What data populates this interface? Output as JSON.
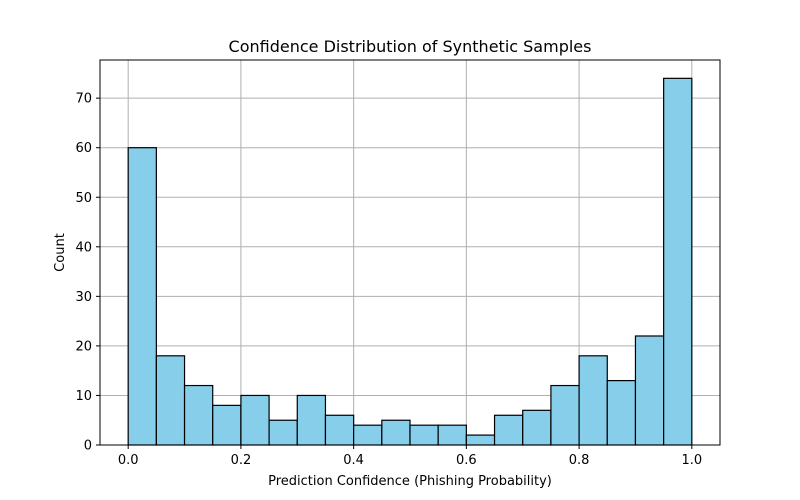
{
  "chart_data": {
    "type": "bar",
    "title": "Confidence Distribution of Synthetic Samples",
    "xlabel": "Prediction Confidence (Phishing Probability)",
    "ylabel": "Count",
    "bin_edges": [
      0.0,
      0.05,
      0.1,
      0.15,
      0.2,
      0.25,
      0.3,
      0.35,
      0.4,
      0.45,
      0.5,
      0.55,
      0.6,
      0.65,
      0.7,
      0.75,
      0.8,
      0.85,
      0.9,
      0.95,
      1.0
    ],
    "values": [
      60,
      18,
      12,
      8,
      10,
      5,
      10,
      6,
      4,
      5,
      4,
      4,
      2,
      6,
      7,
      12,
      18,
      13,
      22,
      74
    ],
    "xlim": [
      -0.05,
      1.05
    ],
    "ylim": [
      0,
      77.7
    ],
    "xticks": [
      0.0,
      0.2,
      0.4,
      0.6,
      0.8,
      1.0
    ],
    "xtick_labels": [
      "0.0",
      "0.2",
      "0.4",
      "0.6",
      "0.8",
      "1.0"
    ],
    "yticks": [
      0,
      10,
      20,
      30,
      40,
      50,
      60,
      70
    ],
    "ytick_labels": [
      "0",
      "10",
      "20",
      "30",
      "40",
      "50",
      "60",
      "70"
    ],
    "grid": true,
    "colors": {
      "bar_fill": "#87ceeb",
      "bar_edge": "#000000",
      "grid": "#b0b0b0"
    }
  }
}
